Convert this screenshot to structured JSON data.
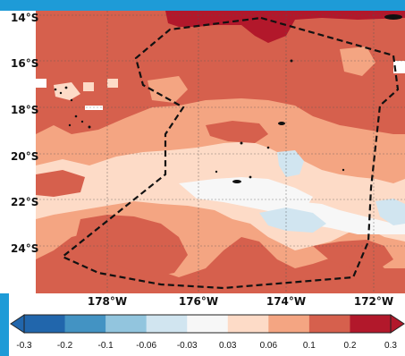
{
  "map": {
    "lat_labels": [
      "14°S",
      "16°S",
      "18°S",
      "20°S",
      "22°S",
      "24°S"
    ],
    "lon_labels": [
      "178°W",
      "176°W",
      "174°W",
      "172°W"
    ]
  },
  "colorbar": {
    "ticks": [
      "-0.3",
      "-0.2",
      "-0.1",
      "-0.06",
      "-0.03",
      "0.03",
      "0.06",
      "0.1",
      "0.2",
      "0.3"
    ],
    "colors": [
      "#2166ac",
      "#4393c3",
      "#92c5de",
      "#d1e5f0",
      "#f7f7f7",
      "#fddbc7",
      "#f4a582",
      "#d6604d",
      "#b2182b"
    ]
  },
  "palette": {
    "dark_red": "#b2182b",
    "red": "#d6604d",
    "salmon": "#f4a582",
    "peach": "#fddbc7",
    "white": "#f7f7f7",
    "light_blue": "#d1e5f0",
    "frame_blue": "#1e9bd7"
  }
}
